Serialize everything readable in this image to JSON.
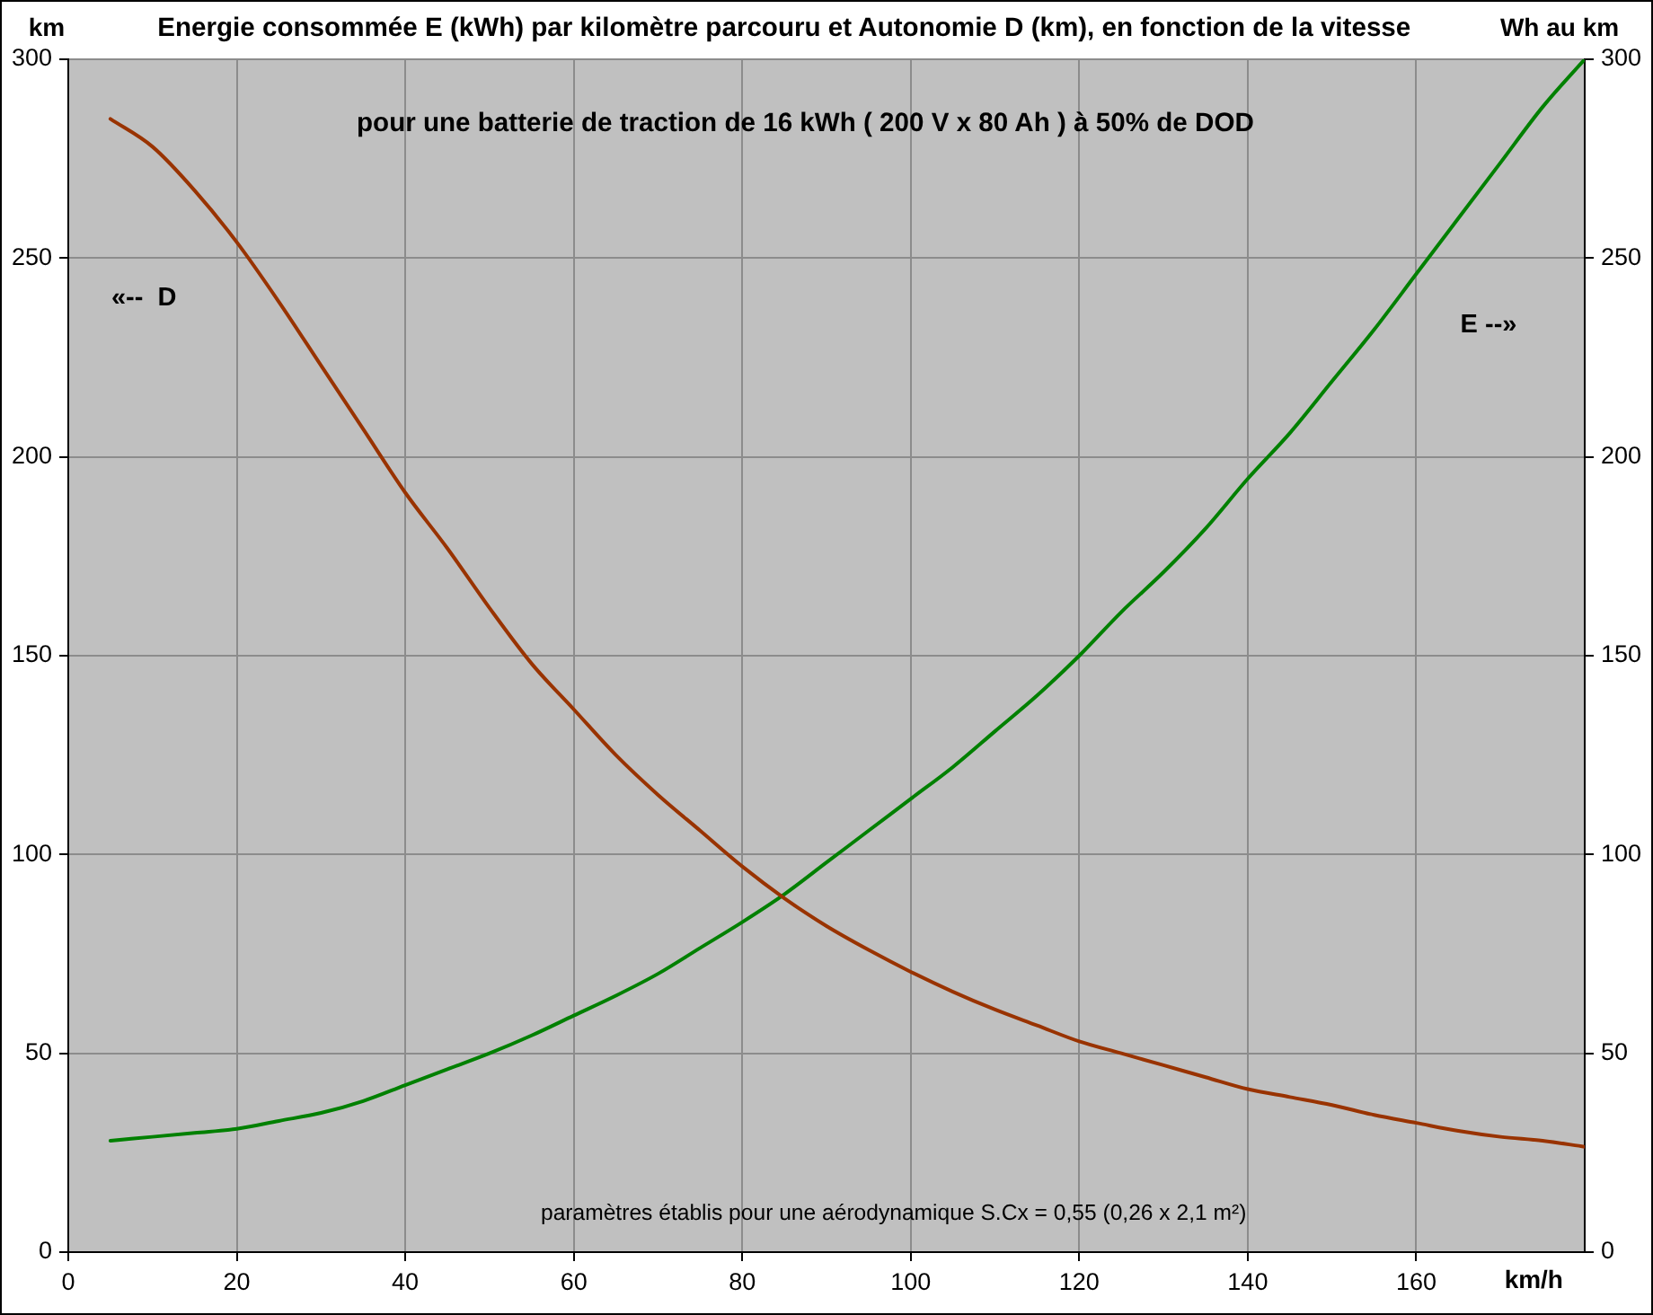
{
  "chart_data": {
    "type": "line",
    "title": "Energie consommée E (kWh) par kilomètre parcouru et Autonomie D (km), en fonction de la vitesse",
    "subtitle": "pour une batterie de traction de 16 kWh ( 200 V x 80 Ah ) à 50% de DOD",
    "xlabel": "km/h",
    "ylabel": "km",
    "y2label": "Wh au km",
    "annotations": [
      "«--  D",
      "E --»",
      "paramètres établis pour une aérodynamique S.Cx = 0,55 (0,26 x 2,1 m²)"
    ],
    "x": [
      5,
      10,
      15,
      20,
      25,
      30,
      35,
      40,
      45,
      50,
      55,
      60,
      65,
      70,
      75,
      80,
      85,
      90,
      95,
      100,
      105,
      110,
      115,
      120,
      125,
      130,
      135,
      140,
      145,
      150,
      155,
      160,
      165,
      170,
      175,
      180
    ],
    "series": [
      {
        "color": "#993300",
        "values": [
          285,
          278,
          267,
          254,
          239,
          223,
          207,
          191,
          177,
          162,
          148,
          136.5,
          125,
          115,
          106,
          97,
          89,
          82,
          76,
          70.5,
          65.5,
          61,
          57,
          53,
          50,
          47,
          44,
          41,
          39,
          37,
          34.5,
          32.5,
          30.5,
          29,
          28,
          26.5
        ]
      },
      {
        "color": "#008000",
        "axis": "y2",
        "values": [
          28,
          29,
          30,
          31,
          33,
          35,
          38,
          42,
          46,
          50,
          54.5,
          59.5,
          64.5,
          70,
          76.5,
          83,
          90,
          98,
          106,
          114,
          122,
          131,
          140,
          150,
          161,
          171,
          182,
          194.5,
          206,
          219,
          232,
          246,
          260,
          274,
          288,
          300
        ]
      }
    ],
    "xlim": [
      0,
      180
    ],
    "xticks": [
      0,
      20,
      40,
      60,
      80,
      100,
      120,
      140,
      160
    ],
    "ylim": [
      0,
      300
    ],
    "yticks": [
      0,
      50,
      100,
      150,
      200,
      250,
      300
    ],
    "y2lim": [
      0,
      300
    ],
    "y2ticks": [
      0,
      50,
      100,
      150,
      200,
      250,
      300
    ],
    "grid": true,
    "marker": "none",
    "line_style": "solid"
  }
}
